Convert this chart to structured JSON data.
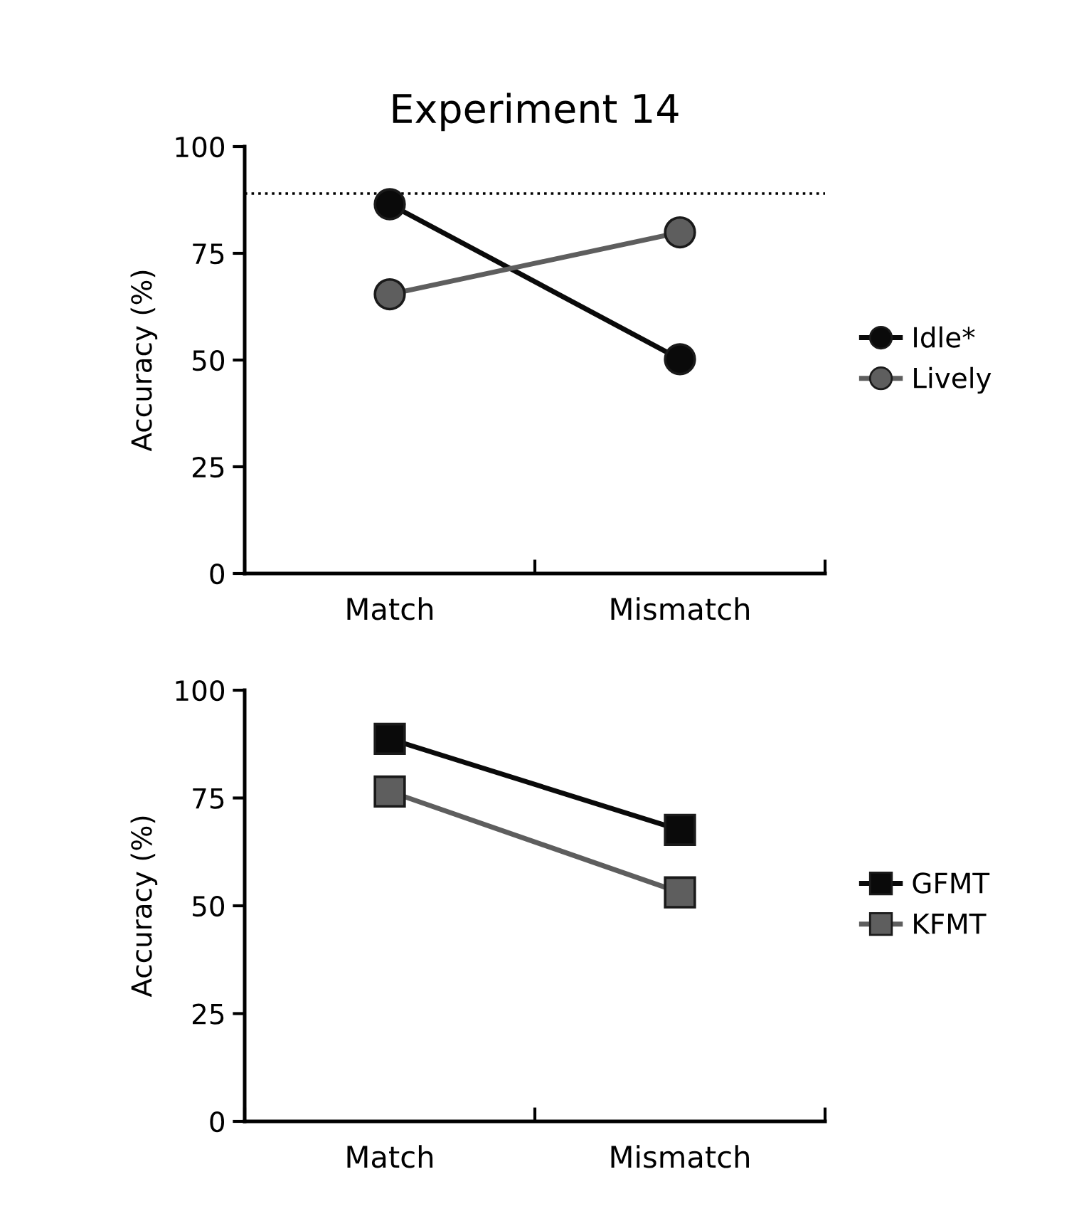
{
  "chart_data": [
    {
      "type": "line",
      "title": "Experiment 14",
      "ylabel": "Accuracy (%)",
      "categories": [
        "Match",
        "Mismatch"
      ],
      "ylim": [
        0,
        100
      ],
      "yticks": [
        0,
        25,
        50,
        75,
        100
      ],
      "grid": false,
      "legend": "right",
      "marker": "circle",
      "series": [
        {
          "name": "Idle*",
          "color": "#0a0a0a",
          "values": [
            86.5,
            50.2
          ]
        },
        {
          "name": "Lively",
          "color": "#5e5e5e",
          "values": [
            65.4,
            79.9
          ]
        }
      ],
      "ref_lines": [
        {
          "axis": "y",
          "value": 89,
          "line_style": "dotted",
          "color": "#000000"
        }
      ]
    },
    {
      "type": "line",
      "ylabel": "Accuracy (%)",
      "categories": [
        "Match",
        "Mismatch"
      ],
      "ylim": [
        0,
        100
      ],
      "yticks": [
        0,
        25,
        50,
        75,
        100
      ],
      "grid": false,
      "legend": "right",
      "marker": "square",
      "series": [
        {
          "name": "GFMT",
          "color": "#0a0a0a",
          "values": [
            88.7,
            67.6
          ]
        },
        {
          "name": "KFMT",
          "color": "#5e5e5e",
          "values": [
            76.5,
            53.1
          ]
        }
      ]
    }
  ]
}
